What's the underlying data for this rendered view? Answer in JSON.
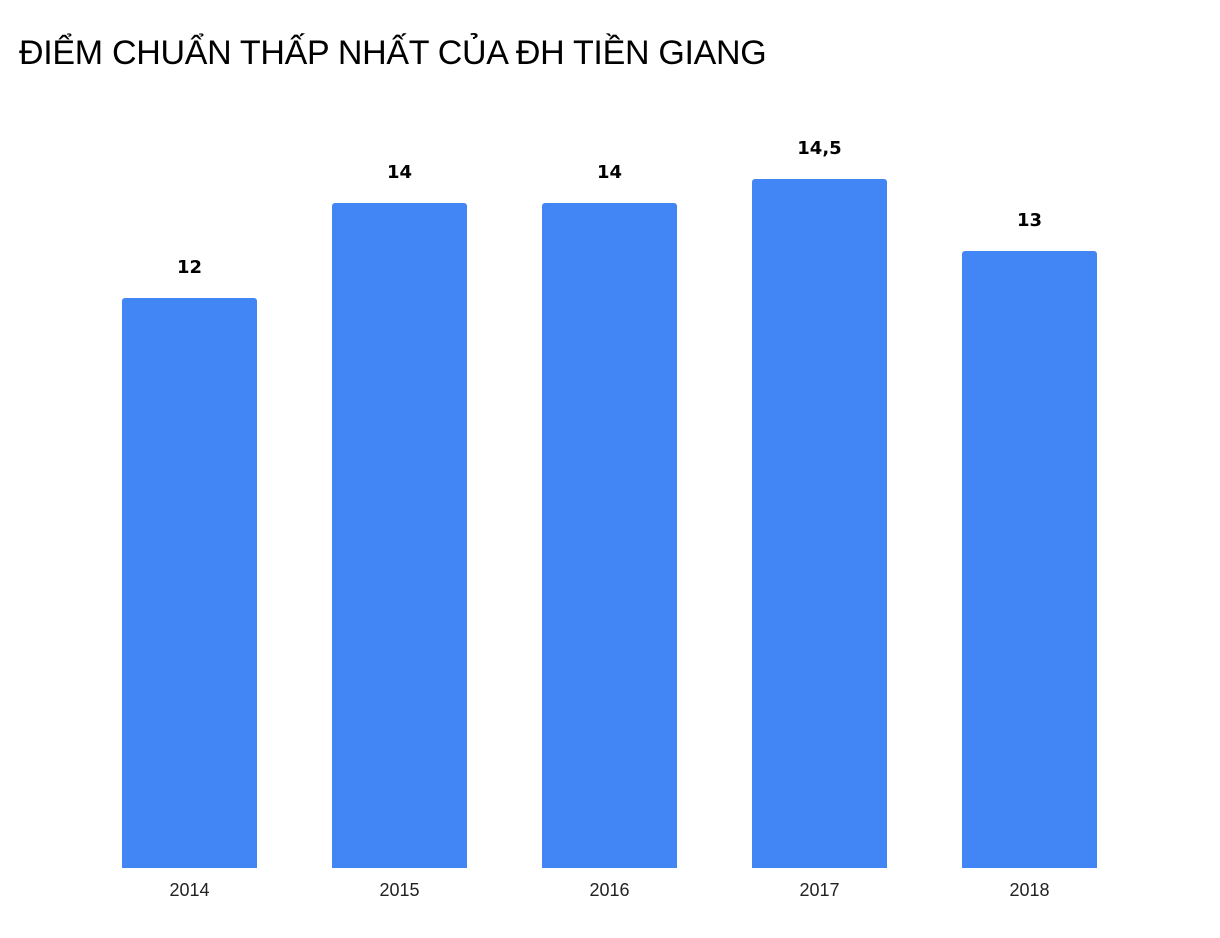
{
  "title": "ĐIỂM CHUẨN THẤP NHẤT CỦA ĐH TIỀN GIANG",
  "colors": {
    "bar": "#4285f4",
    "text": "#000000",
    "background": "#ffffff"
  },
  "chart_data": {
    "type": "bar",
    "title": "ĐIỂM CHUẨN THẤP NHẤT CỦA ĐH TIỀN GIANG",
    "categories": [
      "2014",
      "2015",
      "2016",
      "2017",
      "2018"
    ],
    "values": [
      12,
      14,
      14,
      14.5,
      13
    ],
    "value_labels": [
      "12",
      "14",
      "14",
      "14,5",
      "13"
    ],
    "xlabel": "",
    "ylabel": "",
    "ylim": [
      0,
      15
    ],
    "grid": false,
    "legend": "none",
    "data_labels": true
  }
}
